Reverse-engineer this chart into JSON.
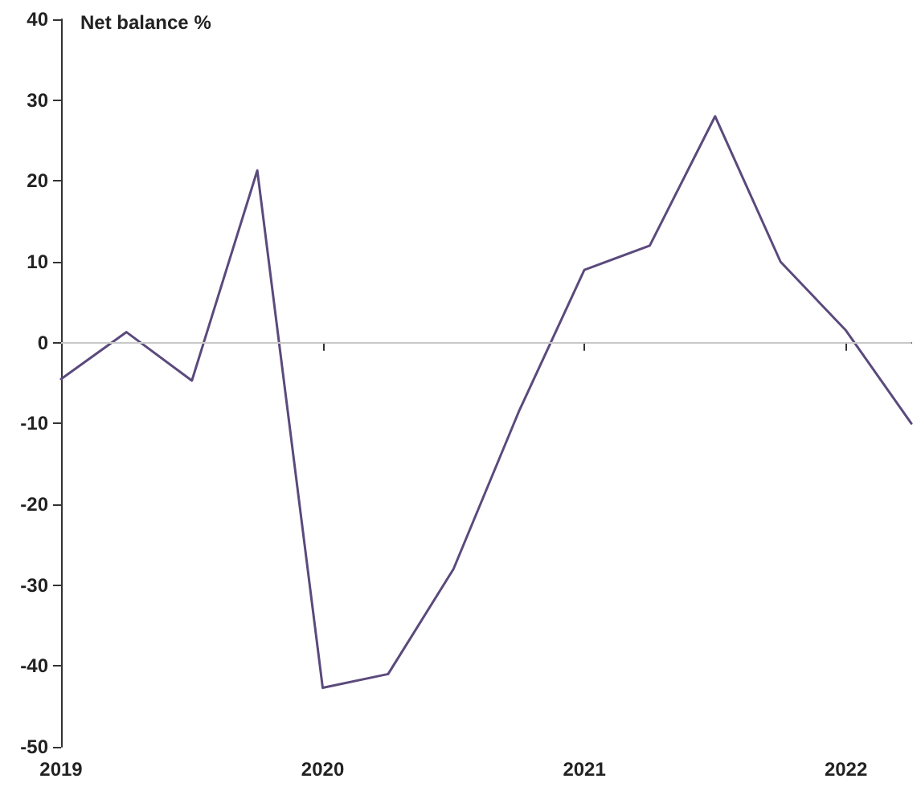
{
  "chart_data": {
    "type": "line",
    "ylabel": "Net balance %",
    "categories": [
      "2019",
      null,
      null,
      null,
      "2020",
      null,
      null,
      null,
      "2021",
      null,
      null,
      null,
      "2022",
      null
    ],
    "series": [
      {
        "color": "#5b4a7c",
        "values": [
          -4.5,
          1.3,
          -4.7,
          21.3,
          -42.7,
          -41,
          -28,
          -8.5,
          9,
          12,
          28,
          10,
          1.5,
          -10
        ]
      }
    ],
    "ylim": [
      -50,
      40
    ],
    "yticks": [
      -50,
      -40,
      -30,
      -20,
      -10,
      0,
      10,
      20,
      30,
      40
    ],
    "ref_lines": [
      {
        "axis": "y",
        "value": 0,
        "color": "#c8c8c8"
      }
    ],
    "marker": "none",
    "line_style": "solid"
  }
}
